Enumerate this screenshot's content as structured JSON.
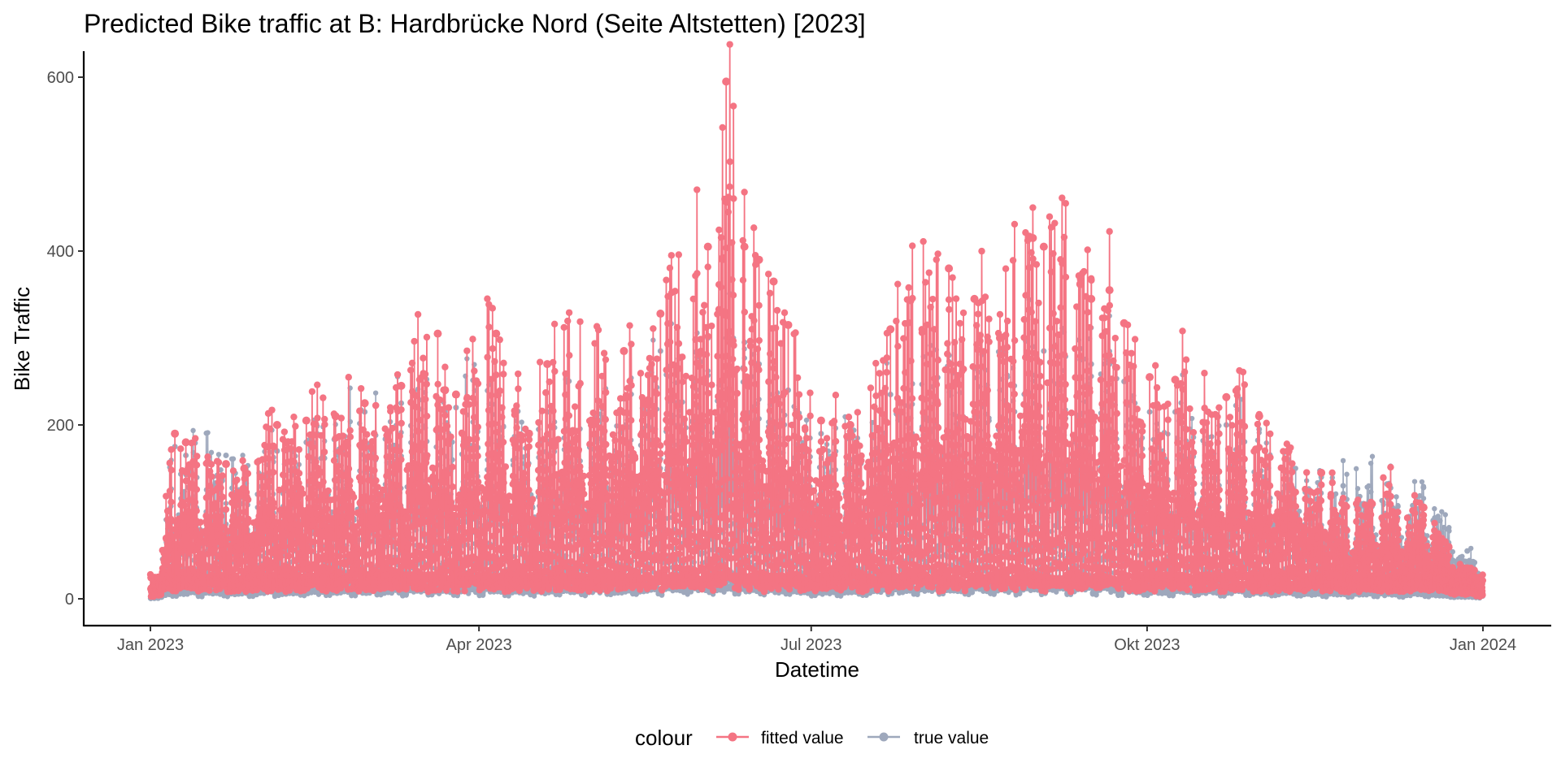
{
  "chart_data": {
    "type": "line",
    "title": "Predicted Bike traffic at B: Hardbrücke Nord (Seite Altstetten)  [2023]",
    "xlabel": "Datetime",
    "ylabel": "Bike Traffic",
    "x_range": [
      "2023-01-01",
      "2024-01-01"
    ],
    "ylim": [
      -30,
      620
    ],
    "x_ticks": [
      {
        "date": "2023-01-01",
        "label": "Jan 2023"
      },
      {
        "date": "2023-04-01",
        "label": "Apr 2023"
      },
      {
        "date": "2023-07-01",
        "label": "Jul 2023"
      },
      {
        "date": "2023-10-01",
        "label": "Okt 2023"
      },
      {
        "date": "2024-01-01",
        "label": "Jan 2024"
      }
    ],
    "y_ticks": [
      0,
      200,
      400,
      600
    ],
    "grid": false,
    "legend": {
      "title": "colour",
      "position": "bottom",
      "entries": [
        "fitted value",
        "true value"
      ]
    },
    "colors": {
      "fitted value": "#F47483",
      "true value": "#9EA8BC"
    },
    "daily_peaks": {
      "description": "approximate daily maximum read from the plot",
      "dates": [
        "2023-01-03",
        "2023-01-07",
        "2023-01-10",
        "2023-01-21",
        "2023-01-26",
        "2023-02-04",
        "2023-02-12",
        "2023-02-20",
        "2023-02-28",
        "2023-03-10",
        "2023-03-20",
        "2023-03-22",
        "2023-03-25",
        "2023-04-05",
        "2023-04-14",
        "2023-04-19",
        "2023-05-10",
        "2023-05-20",
        "2023-06-02",
        "2023-06-07",
        "2023-06-12",
        "2023-06-16",
        "2023-06-20",
        "2023-06-24",
        "2023-07-03",
        "2023-07-11",
        "2023-07-22",
        "2023-08-07",
        "2023-08-14",
        "2023-08-21",
        "2023-08-30",
        "2023-09-02",
        "2023-09-12",
        "2023-09-15",
        "2023-09-20",
        "2023-09-24",
        "2023-10-01",
        "2023-10-08",
        "2023-10-22",
        "2023-10-31",
        "2023-11-08",
        "2023-11-17",
        "2023-11-23",
        "2023-12-05",
        "2023-12-15",
        "2023-12-27"
      ],
      "fitted": [
        25,
        190,
        180,
        155,
        150,
        200,
        205,
        210,
        225,
        245,
        305,
        240,
        235,
        305,
        190,
        270,
        285,
        328,
        405,
        595,
        405,
        390,
        365,
        315,
        205,
        200,
        310,
        380,
        345,
        300,
        415,
        405,
        362,
        345,
        355,
        317,
        255,
        252,
        232,
        210,
        170,
        145,
        100,
        120,
        105,
        35
      ],
      "true": [
        15,
        175,
        165,
        165,
        150,
        170,
        180,
        185,
        215,
        225,
        230,
        215,
        220,
        235,
        185,
        215,
        230,
        285,
        300,
        300,
        295,
        270,
        265,
        240,
        190,
        185,
        235,
        280,
        265,
        240,
        290,
        285,
        275,
        270,
        270,
        250,
        215,
        215,
        200,
        195,
        160,
        140,
        130,
        132,
        128,
        55
      ]
    }
  }
}
